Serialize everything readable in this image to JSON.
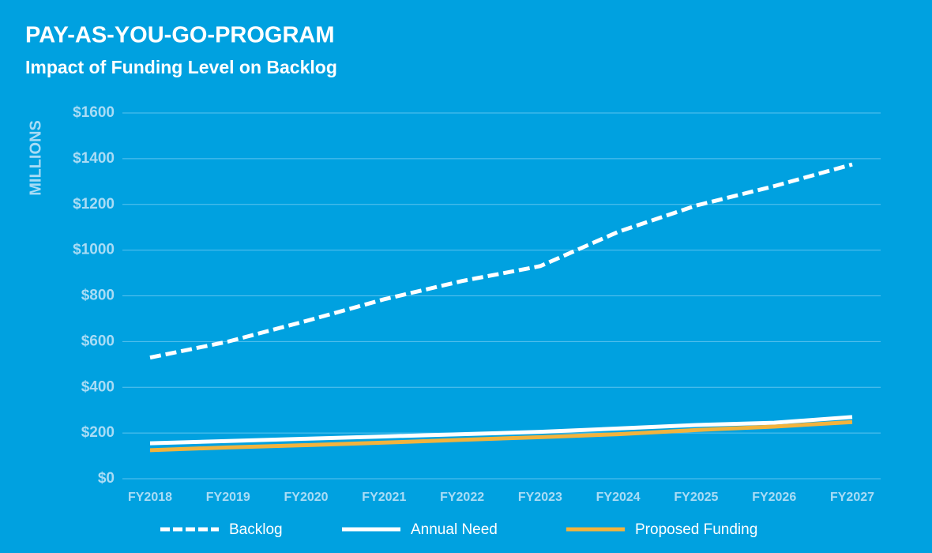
{
  "chart_data": {
    "type": "line",
    "title": "PAY-AS-YOU-GO-PROGRAM",
    "subtitle": "Impact of Funding Level on Backlog",
    "y_label": "MILLIONS",
    "categories": [
      "FY2018",
      "FY2019",
      "FY2020",
      "FY2021",
      "FY2022",
      "FY2023",
      "FY2024",
      "FY2025",
      "FY2026",
      "FY2027"
    ],
    "series": [
      {
        "name": "Backlog",
        "color": "#ffffff",
        "line_style": "dashed",
        "values": [
          530,
          600,
          690,
          785,
          865,
          930,
          1080,
          1195,
          1280,
          1375
        ]
      },
      {
        "name": "Annual Need",
        "color": "#ffffff",
        "line_style": "solid",
        "values": [
          155,
          165,
          175,
          185,
          195,
          205,
          220,
          235,
          245,
          270
        ]
      },
      {
        "name": "Proposed Funding",
        "color": "#f2b33d",
        "line_style": "solid",
        "values": [
          125,
          137,
          147,
          158,
          170,
          182,
          195,
          213,
          228,
          248
        ]
      }
    ],
    "ylim": [
      0,
      1600
    ],
    "yticks": [
      {
        "value": 0,
        "label": "$0"
      },
      {
        "value": 200,
        "label": "$200"
      },
      {
        "value": 400,
        "label": "$400"
      },
      {
        "value": 600,
        "label": "$600"
      },
      {
        "value": 800,
        "label": "$800"
      },
      {
        "value": 1000,
        "label": "$1000"
      },
      {
        "value": 1200,
        "label": "$1200"
      },
      {
        "value": 1400,
        "label": "$1400"
      },
      {
        "value": 1600,
        "label": "$1600"
      }
    ],
    "grid": true,
    "legend_position": "bottom"
  }
}
